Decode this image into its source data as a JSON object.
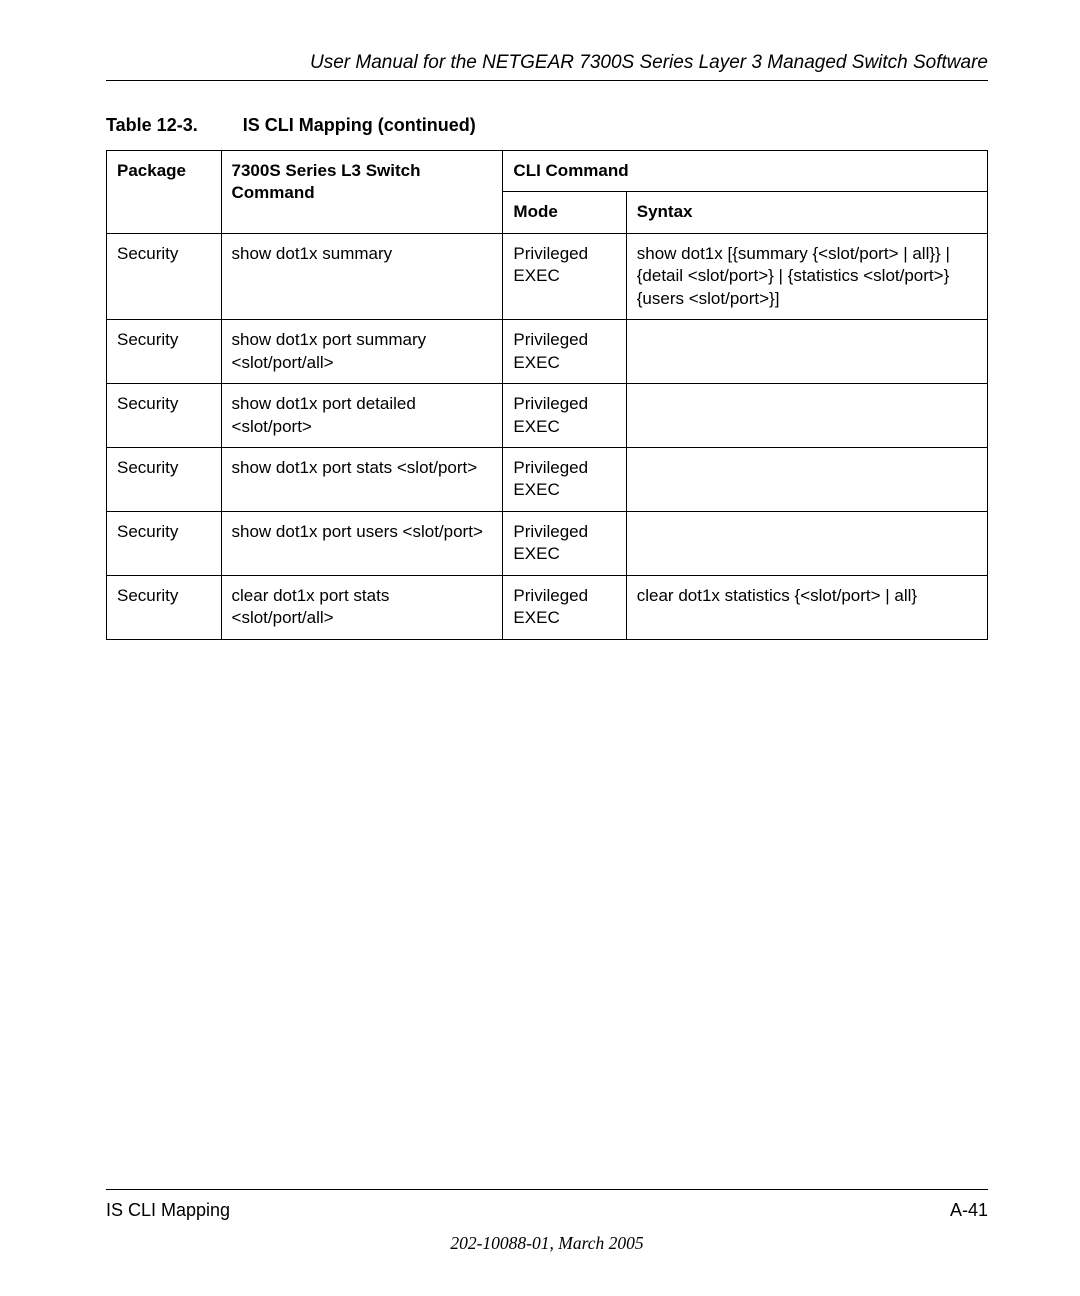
{
  "header": {
    "title": "User Manual for the NETGEAR 7300S Series Layer 3 Managed Switch Software"
  },
  "table": {
    "caption_number": "Table 12-3.",
    "caption_text": "IS CLI Mapping  (continued)",
    "headers": {
      "package": "Package",
      "command": "7300S Series L3 Switch Command",
      "cli_command": "CLI Command",
      "mode": "Mode",
      "syntax": "Syntax"
    },
    "rows": [
      {
        "package": "Security",
        "command": "show dot1x summary",
        "mode": "Privileged EXEC",
        "syntax": "show dot1x [{summary {<slot/port> | all}} | {detail <slot/port>} | {statistics <slot/port>} {users <slot/port>}]"
      },
      {
        "package": "Security",
        "command": "show dot1x port summary <slot/port/all>",
        "mode": "Privileged EXEC",
        "syntax": ""
      },
      {
        "package": "Security",
        "command": "show dot1x port detailed <slot/port>",
        "mode": "Privileged EXEC",
        "syntax": ""
      },
      {
        "package": "Security",
        "command": "show dot1x port stats <slot/port>",
        "mode": "Privileged EXEC",
        "syntax": ""
      },
      {
        "package": "Security",
        "command": "show dot1x port users <slot/port>",
        "mode": "Privileged EXEC",
        "syntax": ""
      },
      {
        "package": "Security",
        "command": "clear dot1x port stats <slot/port/all>",
        "mode": "Privileged EXEC",
        "syntax": "clear dot1x statistics {<slot/port> | all}"
      }
    ]
  },
  "footer": {
    "left": "IS CLI Mapping",
    "right": "A-41",
    "docid": "202-10088-01, March 2005"
  }
}
